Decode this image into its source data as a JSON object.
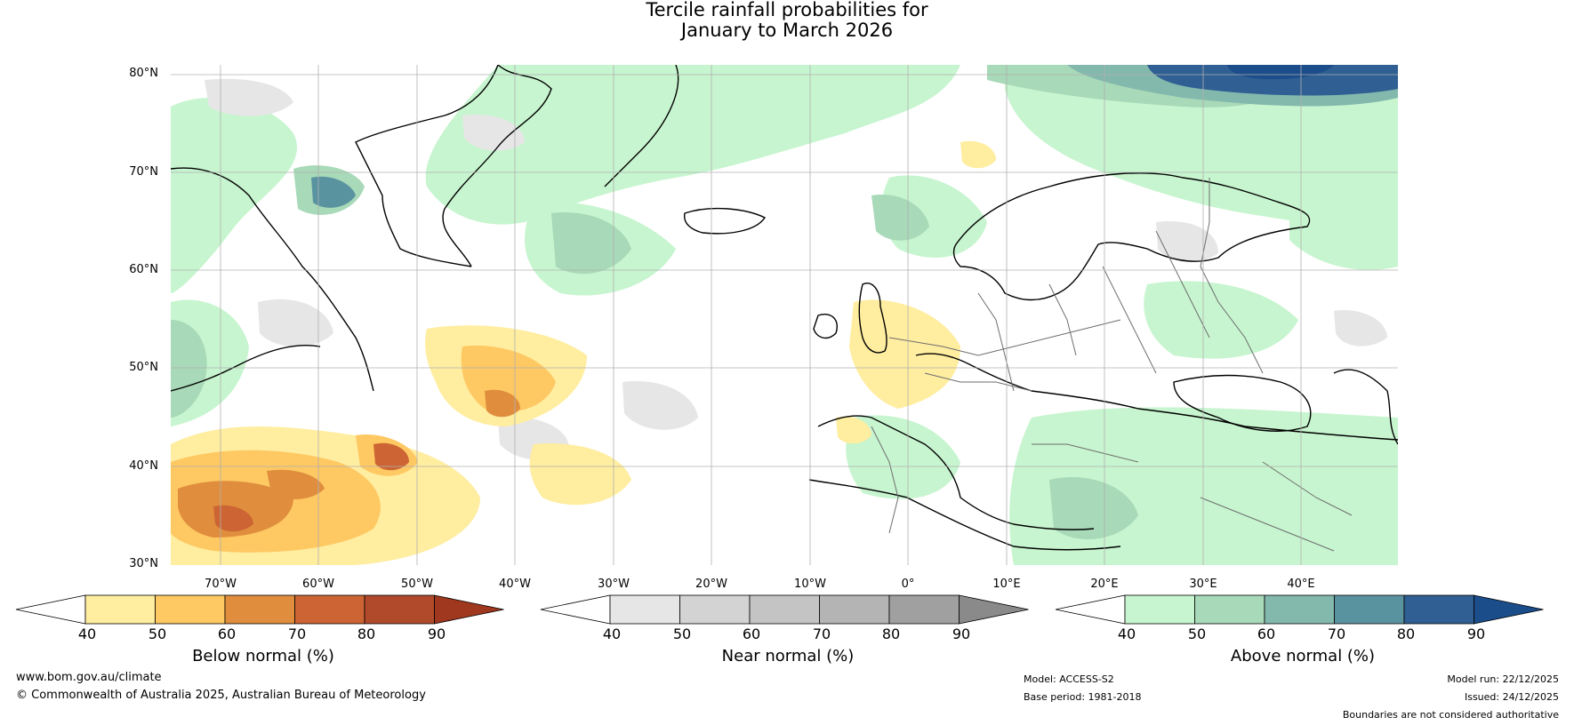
{
  "title": {
    "line1": "Tercile rainfall probabilities for",
    "line2": "January to March 2026"
  },
  "latitude_labels": [
    "80°N",
    "70°N",
    "60°N",
    "50°N",
    "40°N",
    "30°N"
  ],
  "longitude_labels": [
    "70°W",
    "60°W",
    "50°W",
    "40°W",
    "30°W",
    "20°W",
    "10°W",
    "0°",
    "10°E",
    "20°E",
    "30°E",
    "40°E"
  ],
  "colorbars": [
    {
      "id": "below",
      "title": "Below normal (%)",
      "ticks": [
        "40",
        "50",
        "60",
        "70",
        "80",
        "90"
      ],
      "colors": [
        "#ffffff",
        "#ffeda0",
        "#fec862",
        "#e08e3e",
        "#cc6533",
        "#b04a2b",
        "#a0381f"
      ]
    },
    {
      "id": "near",
      "title": "Near normal (%)",
      "ticks": [
        "40",
        "50",
        "60",
        "70",
        "80",
        "90"
      ],
      "colors": [
        "#ffffff",
        "#e6e6e6",
        "#d3d3d3",
        "#c4c4c4",
        "#b4b4b4",
        "#a0a0a0",
        "#8a8a8a"
      ]
    },
    {
      "id": "above",
      "title": "Above normal (%)",
      "ticks": [
        "40",
        "50",
        "60",
        "70",
        "80",
        "90"
      ],
      "colors": [
        "#ffffff",
        "#c7f5cf",
        "#a8d9b8",
        "#83b8ad",
        "#5a93a0",
        "#2f5f93",
        "#1a4d8a"
      ]
    }
  ],
  "footer": {
    "website": "www.bom.gov.au/climate",
    "copyright": "© Commonwealth of Australia 2025, Australian Bureau of Meteorology",
    "model": "Model: ACCESS-S2",
    "base_period": "Base period: 1981-2018",
    "model_run": "Model run: 22/12/2025",
    "issued": "Issued: 24/12/2025",
    "disclaimer": "Boundaries are not considered authoritative"
  }
}
